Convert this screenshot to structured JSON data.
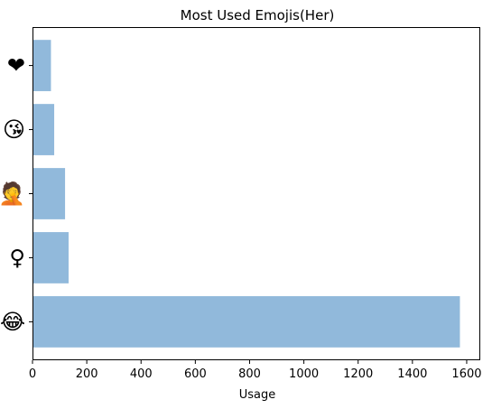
{
  "chart_data": {
    "type": "bar",
    "orientation": "horizontal",
    "title": "Most Used Emojis(Her)",
    "xlabel": "Usage",
    "ylabel": "",
    "categories": [
      "😂",
      "♀",
      "🤦",
      "😘",
      "❤"
    ],
    "category_icons": [
      "face-with-tears-of-joy-icon",
      "female-sign-icon",
      "face-palm-icon",
      "face-blowing-kiss-icon",
      "heart-icon"
    ],
    "values": [
      1575,
      133,
      120,
      80,
      68
    ],
    "xlim": [
      0,
      1650
    ],
    "xticks": [
      0,
      200,
      400,
      600,
      800,
      1000,
      1200,
      1400,
      1600
    ],
    "bar_color": "#91b9db",
    "grid": false,
    "legend": "none"
  }
}
